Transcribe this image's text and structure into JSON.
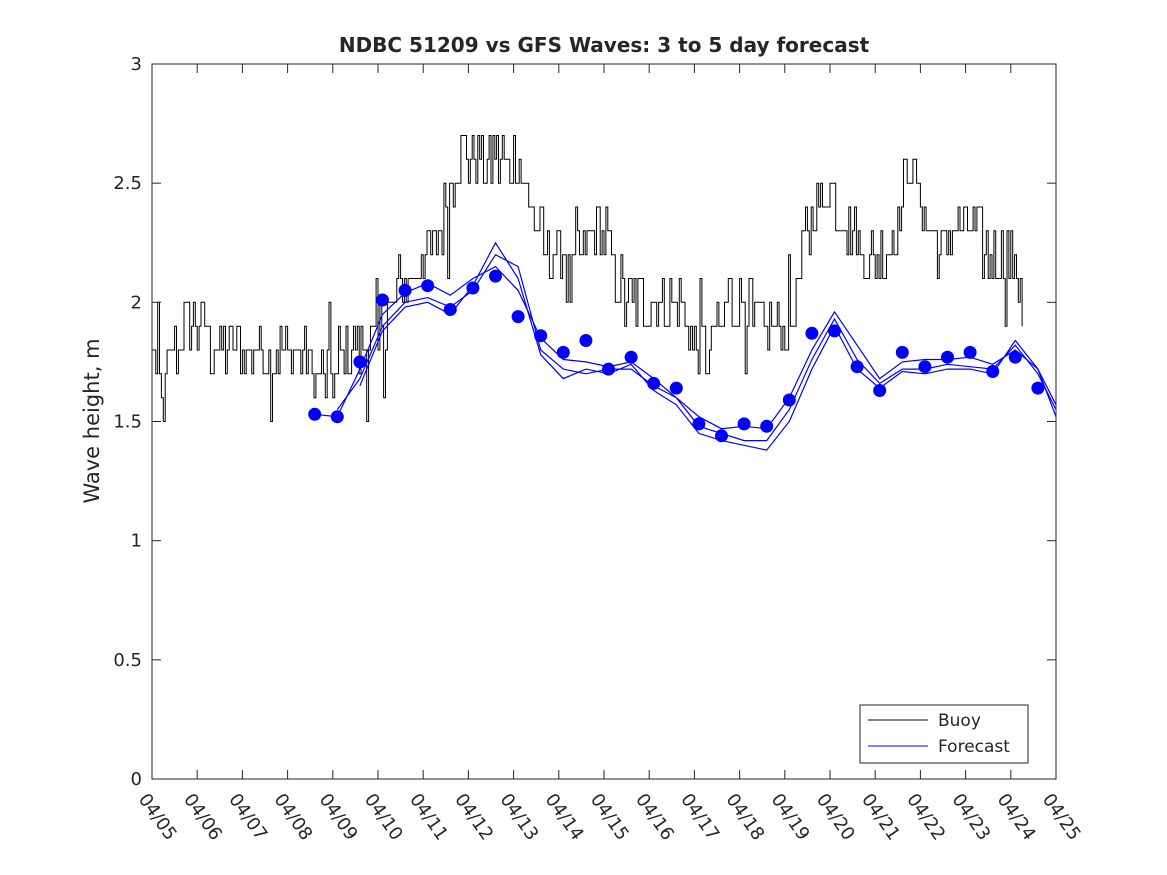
{
  "chart_data": {
    "type": "line",
    "title": "NDBC 51209 vs GFS Waves: 3 to 5 day forecast",
    "xlabel": "",
    "ylabel": "Wave height, m",
    "x_unit": "days (April)",
    "xlim": [
      5,
      25
    ],
    "ylim": [
      0,
      3
    ],
    "yticks": [
      "0",
      "0.5",
      "1",
      "1.5",
      "2",
      "2.5",
      "3"
    ],
    "xticks": [
      "04/05",
      "04/06",
      "04/07",
      "04/08",
      "04/09",
      "04/10",
      "04/11",
      "04/12",
      "04/13",
      "04/14",
      "04/15",
      "04/16",
      "04/17",
      "04/18",
      "04/19",
      "04/20",
      "04/21",
      "04/22",
      "04/23",
      "04/24",
      "04/25"
    ],
    "grid": false,
    "legend_position": "bottom-right",
    "legend": [
      "Buoy",
      "Forecast"
    ],
    "colors": {
      "buoy": "#000000",
      "forecast": "#0000ff",
      "axes": "#262626"
    },
    "series": [
      {
        "name": "Buoy",
        "style": "line",
        "anchors": {
          "x": [
            5.0,
            5.25,
            5.5,
            5.75,
            6.0,
            6.5,
            7.0,
            7.5,
            8.0,
            8.25,
            8.5,
            8.75,
            9.0,
            9.25,
            9.5,
            9.75,
            10.0,
            10.25,
            10.5,
            10.75,
            11.0,
            11.25,
            11.5,
            11.75,
            12.0,
            12.25,
            12.5,
            12.75,
            13.0,
            13.25,
            13.5,
            13.75,
            14.0,
            14.25,
            14.5,
            14.75,
            15.0,
            15.25,
            15.5,
            15.75,
            16.0,
            16.25,
            16.5,
            16.75,
            17.0,
            17.25,
            17.5,
            17.75,
            18.0,
            18.25,
            18.5,
            18.75,
            19.0,
            19.25,
            19.5,
            19.75,
            20.0,
            20.25,
            20.5,
            20.75,
            21.0,
            21.25,
            21.5,
            21.75,
            22.0,
            22.25,
            22.5,
            22.75,
            23.0,
            23.25,
            23.5,
            23.75,
            24.0,
            24.25
          ],
          "y": [
            1.8,
            1.6,
            1.8,
            1.9,
            1.9,
            1.8,
            1.8,
            1.8,
            1.8,
            1.85,
            1.75,
            1.68,
            1.7,
            1.8,
            1.8,
            1.8,
            1.85,
            2.0,
            2.1,
            2.1,
            2.2,
            2.2,
            2.4,
            2.6,
            2.65,
            2.6,
            2.6,
            2.55,
            2.6,
            2.5,
            2.3,
            2.2,
            2.2,
            2.1,
            2.2,
            2.3,
            2.3,
            2.1,
            2.0,
            2.0,
            2.0,
            1.95,
            2.0,
            1.95,
            1.8,
            1.8,
            1.9,
            2.0,
            2.0,
            1.95,
            1.9,
            1.85,
            1.85,
            2.0,
            2.3,
            2.4,
            2.5,
            2.4,
            2.3,
            2.2,
            2.2,
            2.2,
            2.3,
            2.6,
            2.4,
            2.3,
            2.2,
            2.3,
            2.3,
            2.3,
            2.2,
            2.2,
            2.2,
            2.05
          ]
        },
        "note": "high-frequency hourly observations with ±0.1 m steps around the anchor trend"
      },
      {
        "name": "Forecast",
        "style": "line+markers",
        "markers": {
          "x": [
            8.6,
            9.1,
            9.6,
            10.1,
            10.6,
            11.1,
            11.6,
            12.1,
            12.6,
            13.1,
            13.6,
            14.1,
            14.6,
            15.1,
            15.6,
            16.1,
            16.6,
            17.1,
            17.6,
            18.1,
            18.6,
            19.1,
            19.6,
            20.1,
            20.6,
            21.1,
            21.6,
            22.1,
            22.6,
            23.1,
            23.6,
            24.1,
            24.6
          ],
          "y": [
            1.53,
            1.52,
            1.75,
            2.01,
            2.05,
            2.07,
            1.97,
            2.06,
            2.11,
            1.94,
            1.86,
            1.79,
            1.84,
            1.72,
            1.77,
            1.66,
            1.64,
            1.49,
            1.44,
            1.49,
            1.48,
            1.59,
            1.87,
            1.88,
            1.73,
            1.63,
            1.79,
            1.73,
            1.77,
            1.79,
            1.71,
            1.77,
            1.64
          ]
        },
        "lines": [
          {
            "x": [
              8.6,
              9.1,
              9.6,
              10.1,
              10.6,
              11.1,
              11.6,
              12.1,
              12.6,
              13.1,
              13.6,
              14.1,
              14.6,
              15.1,
              15.6,
              16.1,
              16.6,
              17.1,
              17.6,
              18.1,
              18.6,
              19.1,
              19.6,
              20.1,
              20.6,
              21.1,
              21.6,
              22.1,
              22.6,
              23.1,
              23.6,
              24.1,
              24.6,
              25.0
            ],
            "y": [
              1.53,
              1.52,
              1.72,
              1.95,
              2.04,
              2.08,
              2.03,
              2.1,
              2.15,
              2.05,
              1.85,
              1.76,
              1.75,
              1.73,
              1.75,
              1.68,
              1.6,
              1.52,
              1.47,
              1.48,
              1.47,
              1.6,
              1.8,
              1.96,
              1.82,
              1.68,
              1.75,
              1.76,
              1.76,
              1.77,
              1.74,
              1.8,
              1.72,
              1.57
            ]
          },
          {
            "x": [
              9.1,
              9.6,
              10.1,
              10.6,
              11.1,
              11.6,
              12.1,
              12.6,
              13.1,
              13.6,
              14.1,
              14.6,
              15.1,
              15.6,
              16.1,
              16.6,
              17.1,
              17.6,
              18.1,
              18.6,
              19.1,
              19.6,
              20.1,
              20.6,
              21.1,
              21.6,
              22.1,
              22.6,
              23.1,
              23.6,
              24.1,
              24.6,
              25.0
            ],
            "y": [
              1.55,
              1.68,
              1.9,
              2.0,
              2.02,
              1.98,
              2.05,
              2.2,
              2.15,
              1.8,
              1.72,
              1.7,
              1.72,
              1.72,
              1.65,
              1.6,
              1.48,
              1.45,
              1.42,
              1.42,
              1.55,
              1.76,
              1.93,
              1.76,
              1.66,
              1.72,
              1.72,
              1.74,
              1.73,
              1.72,
              1.82,
              1.7,
              1.55
            ]
          },
          {
            "x": [
              9.6,
              10.1,
              10.6,
              11.1,
              11.6,
              12.1,
              12.6,
              13.1,
              13.6,
              14.1,
              14.6,
              15.1,
              15.6,
              16.1,
              16.6,
              17.1,
              17.6,
              18.1,
              18.6,
              19.1,
              19.6,
              20.1,
              20.6,
              21.1,
              21.6,
              22.1,
              22.6,
              23.1,
              23.6,
              24.1,
              24.6,
              25.0
            ],
            "y": [
              1.65,
              1.88,
              1.98,
              2.0,
              1.95,
              2.07,
              2.25,
              2.1,
              1.78,
              1.68,
              1.72,
              1.7,
              1.74,
              1.63,
              1.57,
              1.45,
              1.42,
              1.4,
              1.38,
              1.5,
              1.72,
              1.9,
              1.72,
              1.64,
              1.71,
              1.7,
              1.72,
              1.72,
              1.7,
              1.84,
              1.72,
              1.52
            ]
          }
        ]
      }
    ]
  }
}
